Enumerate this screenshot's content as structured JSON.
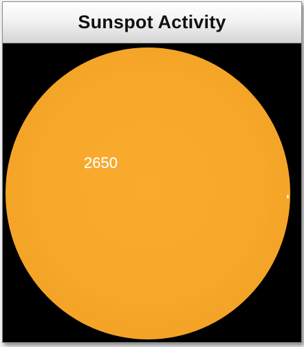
{
  "widget": {
    "title": "Sunspot Activity"
  },
  "solar_image": {
    "sunspot_regions": [
      {
        "label": "2650"
      }
    ]
  },
  "colors": {
    "sun": "#f6a82a",
    "background": "#000000",
    "label": "#ffffff"
  }
}
